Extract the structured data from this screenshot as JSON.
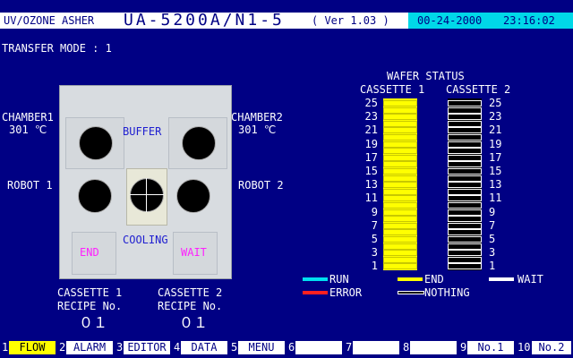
{
  "header": {
    "app": "UV/OZONE ASHER",
    "model": "UA-5200A/N1-5",
    "version": "( Ver 1.03 )",
    "date": "00-24-2000",
    "time": "23:16:02"
  },
  "transfer_mode": "TRANSFER MODE : 1",
  "chamber1": {
    "name": "CHAMBER1",
    "temp": "301 ℃"
  },
  "chamber2": {
    "name": "CHAMBER2",
    "temp": "301 ℃"
  },
  "robot1": "ROBOT 1",
  "robot2": "ROBOT 2",
  "panel": {
    "buffer": "BUFFER",
    "cooling": "COOLING",
    "end": "END",
    "wait": "WAIT"
  },
  "cassette1": {
    "title": "CASSETTE 1",
    "recipe_label": "RECIPE No.",
    "recipe": "０１"
  },
  "cassette2": {
    "title": "CASSETTE 2",
    "recipe_label": "RECIPE No.",
    "recipe": "０１"
  },
  "wafer_status": {
    "title": "WAFER STATUS",
    "cassette1": "CASSETTE 1",
    "cassette2": "CASSETTE 2",
    "slots_left": [
      "25",
      "23",
      "21",
      "19",
      "17",
      "15",
      "13",
      "11",
      "9",
      "7",
      "5",
      "3",
      "1"
    ],
    "slots_right": [
      "25",
      "23",
      "21",
      "19",
      "17",
      "15",
      "13",
      "11",
      "9",
      "7",
      "5",
      "3",
      "1"
    ],
    "cassette1_state": "END",
    "cassette2_state": "NOTHING"
  },
  "legend": {
    "run": "RUN",
    "end": "END",
    "wait": "WAIT",
    "error": "ERROR",
    "nothing": "NOTHING",
    "colors": {
      "run": "#00e0f0",
      "end": "#ffff00",
      "wait": "#ffffff",
      "error": "#ff2020",
      "nothing": "#000000"
    }
  },
  "menu": [
    {
      "num": "1",
      "label": "FLOW",
      "active": true
    },
    {
      "num": "2",
      "label": "ALARM"
    },
    {
      "num": "3",
      "label": "EDITOR"
    },
    {
      "num": "4",
      "label": "DATA"
    },
    {
      "num": "5",
      "label": "MENU"
    },
    {
      "num": "6",
      "label": ""
    },
    {
      "num": "7",
      "label": ""
    },
    {
      "num": "8",
      "label": ""
    },
    {
      "num": "9",
      "label": "No.1"
    },
    {
      "num": "10",
      "label": "No.2"
    }
  ]
}
